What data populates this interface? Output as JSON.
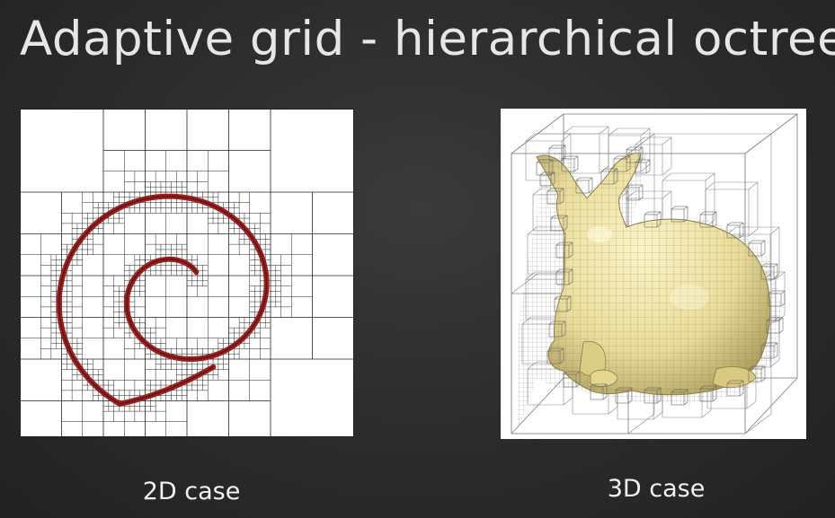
{
  "slide": {
    "title": "Adaptive grid - hierarchical octree"
  },
  "figures": {
    "left": {
      "caption": "2D case",
      "curve_color": "#9a1f1f",
      "grid_color": "#222222"
    },
    "right": {
      "caption": "3D case",
      "mesh_color": "#e9dc9a",
      "grid_color": "#6a6a6a"
    }
  },
  "colors": {
    "background": "#2b2b2b",
    "title_text": "#e6e6e6",
    "caption_text": "#f2f2f2"
  }
}
